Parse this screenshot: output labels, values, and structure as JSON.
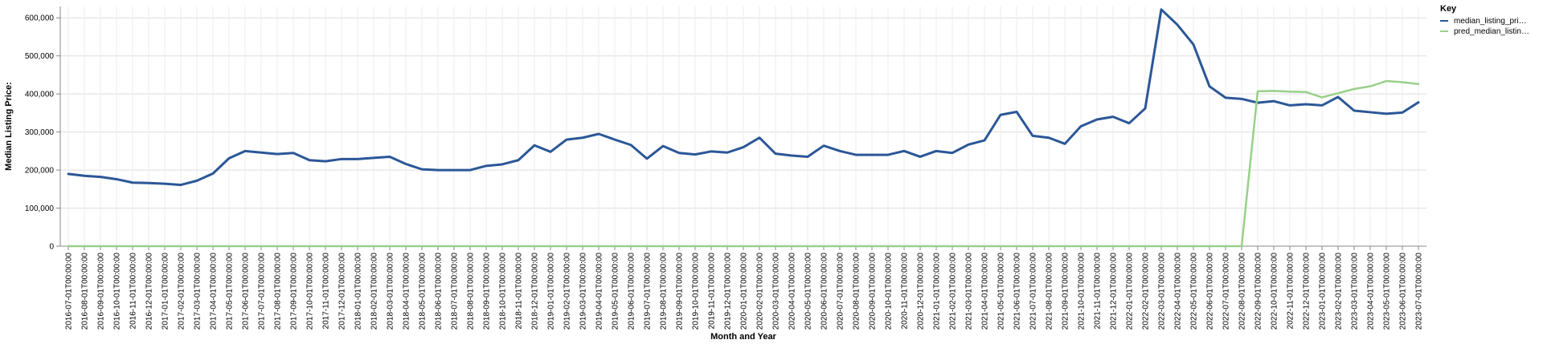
{
  "chart_data": {
    "type": "line",
    "xlabel": "Month and Year",
    "ylabel": "Median Listing Price:",
    "ylim": [
      0,
      630000
    ],
    "yticks": [
      0,
      100000,
      200000,
      300000,
      400000,
      500000,
      600000
    ],
    "ytick_labels": [
      "0",
      "100,000",
      "200,000",
      "300,000",
      "400,000",
      "500,000",
      "600,000"
    ],
    "grid": true,
    "legend": {
      "title": "Key",
      "position": "top-right"
    },
    "x": [
      "2016-07-01T00:00:00",
      "2016-08-01T00:00:00",
      "2016-09-01T00:00:00",
      "2016-10-01T00:00:00",
      "2016-11-01T00:00:00",
      "2016-12-01T00:00:00",
      "2017-01-01T00:00:00",
      "2017-02-01T00:00:00",
      "2017-03-01T00:00:00",
      "2017-04-01T00:00:00",
      "2017-05-01T00:00:00",
      "2017-06-01T00:00:00",
      "2017-07-01T00:00:00",
      "2017-08-01T00:00:00",
      "2017-09-01T00:00:00",
      "2017-10-01T00:00:00",
      "2017-11-01T00:00:00",
      "2017-12-01T00:00:00",
      "2018-01-01T00:00:00",
      "2018-02-01T00:00:00",
      "2018-03-01T00:00:00",
      "2018-04-01T00:00:00",
      "2018-05-01T00:00:00",
      "2018-06-01T00:00:00",
      "2018-07-01T00:00:00",
      "2018-08-01T00:00:00",
      "2018-09-01T00:00:00",
      "2018-10-01T00:00:00",
      "2018-11-01T00:00:00",
      "2018-12-01T00:00:00",
      "2019-01-01T00:00:00",
      "2019-02-01T00:00:00",
      "2019-03-01T00:00:00",
      "2019-04-01T00:00:00",
      "2019-05-01T00:00:00",
      "2019-06-01T00:00:00",
      "2019-07-01T00:00:00",
      "2019-08-01T00:00:00",
      "2019-09-01T00:00:00",
      "2019-10-01T00:00:00",
      "2019-11-01T00:00:00",
      "2019-12-01T00:00:00",
      "2020-01-01T00:00:00",
      "2020-02-01T00:00:00",
      "2020-03-01T00:00:00",
      "2020-04-01T00:00:00",
      "2020-05-01T00:00:00",
      "2020-06-01T00:00:00",
      "2020-07-01T00:00:00",
      "2020-08-01T00:00:00",
      "2020-09-01T00:00:00",
      "2020-10-01T00:00:00",
      "2020-11-01T00:00:00",
      "2020-12-01T00:00:00",
      "2021-01-01T00:00:00",
      "2021-02-01T00:00:00",
      "2021-03-01T00:00:00",
      "2021-04-01T00:00:00",
      "2021-05-01T00:00:00",
      "2021-06-01T00:00:00",
      "2021-07-01T00:00:00",
      "2021-08-01T00:00:00",
      "2021-09-01T00:00:00",
      "2021-10-01T00:00:00",
      "2021-11-01T00:00:00",
      "2021-12-01T00:00:00",
      "2022-01-01T00:00:00",
      "2022-02-01T00:00:00",
      "2022-03-01T00:00:00",
      "2022-04-01T00:00:00",
      "2022-05-01T00:00:00",
      "2022-06-01T00:00:00",
      "2022-07-01T00:00:00",
      "2022-08-01T00:00:00",
      "2022-09-01T00:00:00",
      "2022-10-01T00:00:00",
      "2022-11-01T00:00:00",
      "2022-12-01T00:00:00",
      "2023-01-01T00:00:00",
      "2023-02-01T00:00:00",
      "2023-03-01T00:00:00",
      "2023-04-01T00:00:00",
      "2023-05-01T00:00:00",
      "2023-06-01T00:00:00",
      "2023-07-01T00:00:00"
    ],
    "series": [
      {
        "name": "median_listing_pri…",
        "color": "#2b5797",
        "values": [
          190000,
          185000,
          182000,
          176000,
          167000,
          166000,
          164000,
          161000,
          172000,
          191000,
          231000,
          250000,
          246000,
          242000,
          245000,
          226000,
          223000,
          229000,
          229000,
          232000,
          235000,
          216000,
          202000,
          200000,
          200000,
          200000,
          211000,
          215000,
          226000,
          265000,
          248000,
          280000,
          285000,
          295000,
          280000,
          266000,
          230000,
          263000,
          245000,
          241000,
          249000,
          246000,
          260000,
          285000,
          243000,
          238000,
          235000,
          264000,
          250000,
          240000,
          240000,
          240000,
          250000,
          235000,
          250000,
          245000,
          267000,
          278000,
          345000,
          353000,
          290000,
          285000,
          269000,
          315000,
          333000,
          340000,
          323000,
          362000,
          622000,
          582000,
          530000,
          420000,
          390000,
          387000,
          377000,
          381000,
          370000,
          373000,
          370000,
          392000,
          356000,
          352000,
          348000,
          351000,
          378000
        ]
      },
      {
        "name": "pred_median_listin…",
        "color": "#98d08a",
        "values": [
          0,
          0,
          0,
          0,
          0,
          0,
          0,
          0,
          0,
          0,
          0,
          0,
          0,
          0,
          0,
          0,
          0,
          0,
          0,
          0,
          0,
          0,
          0,
          0,
          0,
          0,
          0,
          0,
          0,
          0,
          0,
          0,
          0,
          0,
          0,
          0,
          0,
          0,
          0,
          0,
          0,
          0,
          0,
          0,
          0,
          0,
          0,
          0,
          0,
          0,
          0,
          0,
          0,
          0,
          0,
          0,
          0,
          0,
          0,
          0,
          0,
          0,
          0,
          0,
          0,
          0,
          0,
          0,
          0,
          0,
          0,
          0,
          0,
          0,
          407000,
          408000,
          406000,
          405000,
          391000,
          402000,
          413000,
          420000,
          434000,
          431000,
          426000
        ]
      }
    ]
  }
}
